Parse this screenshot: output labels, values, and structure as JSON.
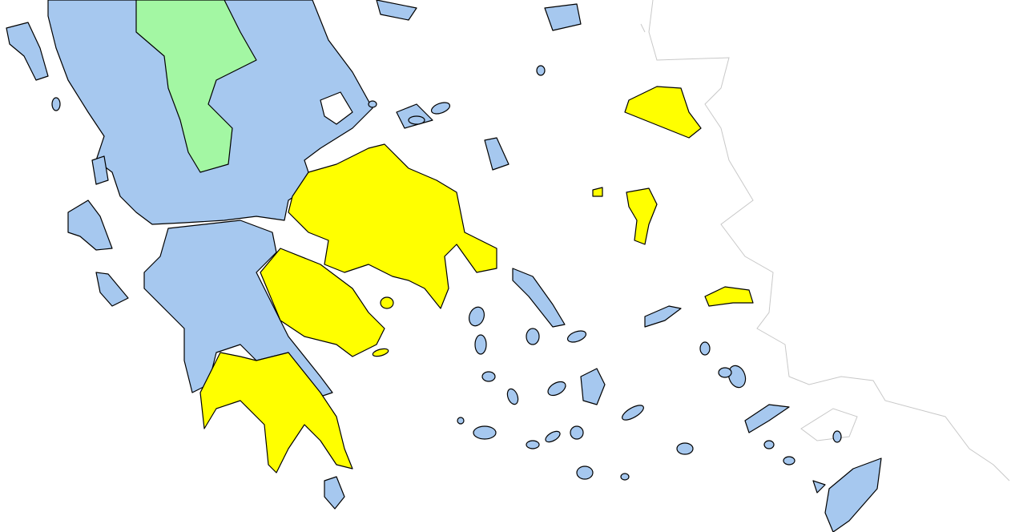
{
  "map": {
    "colors": {
      "level_blue": "#a6c8ef",
      "level_yellow": "#ffff00",
      "level_green": "#a3f7a3",
      "foreign_coast": "#c8c8c8",
      "sea": "#ffffff",
      "border": "#000000"
    }
  }
}
